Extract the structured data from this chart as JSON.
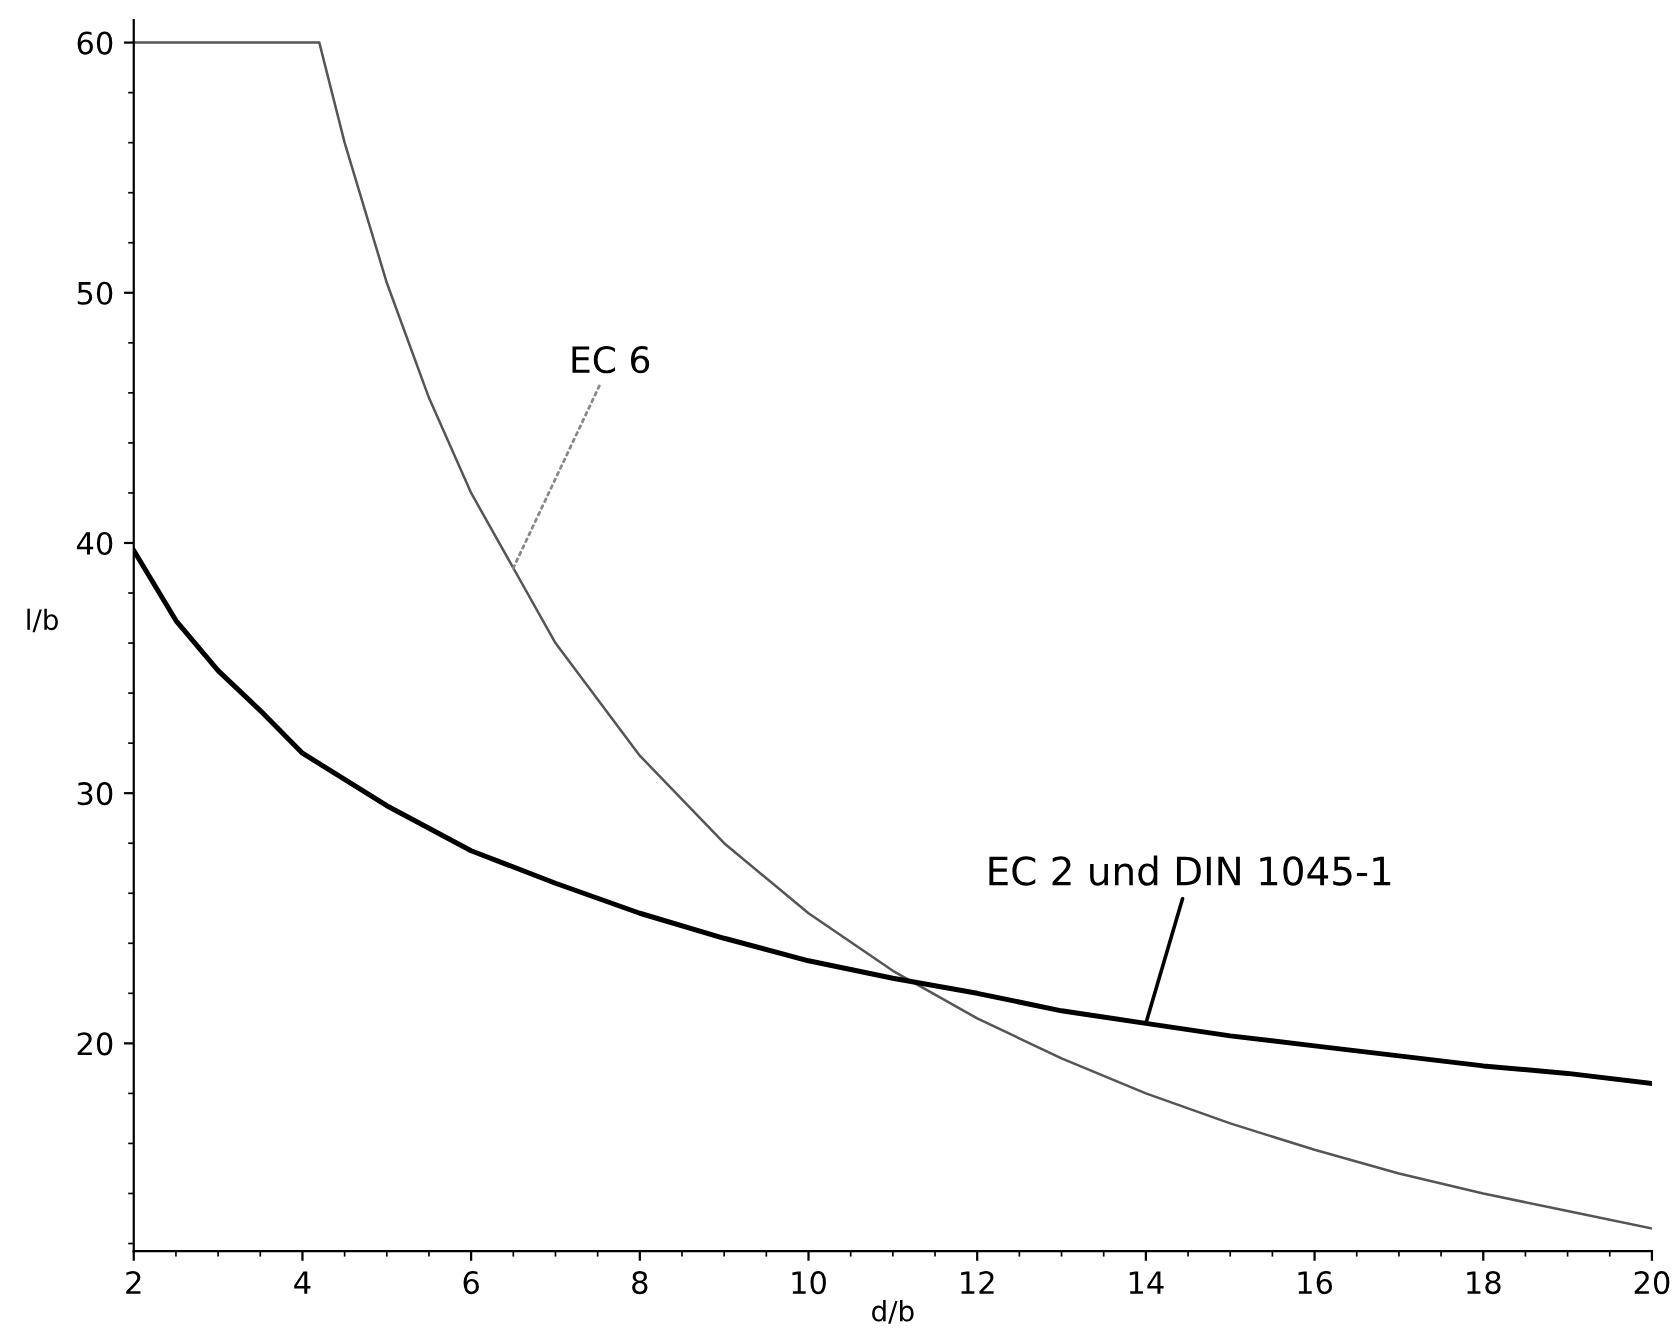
{
  "chart_data": {
    "type": "line",
    "xlabel": "d/b",
    "ylabel": "l/b",
    "xlim": [
      2,
      20
    ],
    "ylim": [
      11.7,
      60.9
    ],
    "xticks": [
      2,
      4,
      6,
      8,
      10,
      12,
      14,
      16,
      18,
      20
    ],
    "yticks": [
      20,
      30,
      40,
      50,
      60
    ],
    "grid": false,
    "legend": false,
    "marker": "none",
    "series": [
      {
        "color": "#555555",
        "line_style": "solid",
        "x": [
          2,
          4.2,
          4.5,
          5,
          5.5,
          6,
          6.5,
          7,
          8,
          9,
          10,
          11,
          12,
          13,
          14,
          15,
          16,
          17,
          18,
          19,
          20
        ],
        "values": [
          60,
          60,
          56,
          50.4,
          45.8,
          42,
          39,
          36,
          31.5,
          28,
          25.2,
          22.9,
          21,
          19.4,
          18,
          16.8,
          15.75,
          14.8,
          14,
          13.3,
          12.6
        ]
      },
      {
        "color": "#000000",
        "line_style": "solid",
        "x": [
          2,
          2.5,
          3,
          3.5,
          4,
          5,
          6,
          7,
          8,
          9,
          10,
          11,
          12,
          13,
          14,
          15,
          16,
          17,
          18,
          19,
          20
        ],
        "values": [
          39.7,
          36.9,
          34.9,
          33.3,
          31.6,
          29.5,
          27.7,
          26.4,
          25.2,
          24.2,
          23.3,
          22.6,
          22,
          21.3,
          20.8,
          20.3,
          19.9,
          19.5,
          19.1,
          18.8,
          18.4
        ]
      }
    ],
    "annotations": [
      {
        "text": "EC 6",
        "x": 6.5,
        "y": 39
      },
      {
        "text": "EC 2 und DIN 1045-1",
        "x": 14,
        "y": 20.8
      }
    ]
  }
}
